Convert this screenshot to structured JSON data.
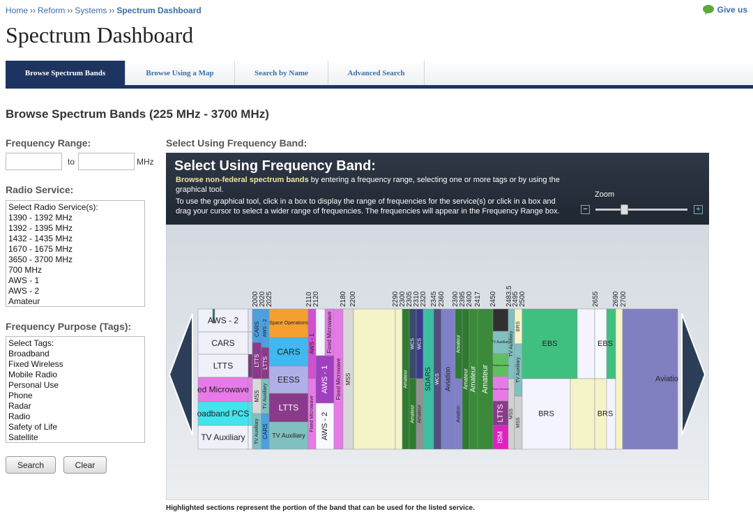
{
  "breadcrumb": {
    "items": [
      "Home",
      "Reform",
      "Systems",
      "Spectrum Dashboard"
    ],
    "separator": "››"
  },
  "feedback": "Give us",
  "title": "Spectrum Dashboard",
  "tabs": [
    "Browse Spectrum Bands",
    "Browse Using a Map",
    "Search by Name",
    "Advanced Search"
  ],
  "heading": "Browse Spectrum Bands (225 MHz - 3700 MHz)",
  "form": {
    "range_label": "Frequency Range:",
    "to": "to",
    "unit": "MHz",
    "service_label": "Radio Service:",
    "service_options": [
      "Select Radio Service(s):",
      "1390 - 1392 MHz",
      "1392 - 1395 MHz",
      "1432 - 1435 MHz",
      "1670 - 1675 MHz",
      "3650 - 3700 MHz",
      "700 MHz",
      "AWS - 1",
      "AWS - 2",
      "Amateur"
    ],
    "tags_label": "Frequency Purpose (Tags):",
    "tag_options": [
      "Select Tags:",
      "Broadband",
      "Fixed Wireless",
      "Mobile Radio",
      "Personal Use",
      "Phone",
      "Radar",
      "Radio",
      "Safety of Life",
      "Satellite"
    ],
    "search": "Search",
    "clear": "Clear"
  },
  "panel": {
    "label": "Select Using Frequency Band:",
    "title": "Select Using Frequency Band:",
    "intro_bold": "Browse non-federal spectrum bands",
    "intro_rest": " by entering a frequency range, selecting one or more tags or by using the graphical tool.",
    "instructions": "To use the graphical tool, click in a box to display the range of frequencies for the service(s) or click in a box and drag your cursor to select a wider range of frequencies.  The frequencies will appear in the Frequency Range box.",
    "zoom": "Zoom",
    "zoom_out": "−",
    "zoom_in": "+",
    "frequencies": [
      "2000",
      "2020",
      "2025",
      "2110",
      "2120",
      "2180",
      "2200",
      "2290",
      "2300",
      "2305",
      "2310",
      "2320",
      "2345",
      "2360",
      "2390",
      "2395",
      "2400",
      "2417",
      "2450",
      "2483.5",
      "2495",
      "2500",
      "2655",
      "2690",
      "2700"
    ],
    "band_labels": [
      "AWS - 2",
      "CARS",
      "LTTS",
      "ed Microwave",
      "oadband PCS",
      "TV Auxiliary",
      "CARS",
      "LTTS",
      "MSS",
      "TV Auxiliary",
      "AWS - 2",
      "LTTS",
      "TV Auxiliary",
      "CARS",
      "Space Operations",
      "CARS",
      "EESS",
      "LTTS",
      "TV Auxiliary",
      "AWS - 1",
      "Fixed Microwave",
      "Fixed Microwave",
      "AWS - 1",
      "AWS - 2",
      "Fixed Microwave",
      "MSS",
      "Amateur",
      "WCS",
      "Amateur",
      "WCS",
      "Amateur",
      "SDARS",
      "WCS",
      "Aviation",
      "Amateur",
      "Aviation",
      "Amateur",
      "Amateur",
      "Amateur",
      "TV Auxiliary",
      "Radiolocation",
      "Fixed Service",
      "LTTS",
      "ISM",
      "TV Auxiliary",
      "MSS",
      "BRS",
      "TV Auxiliary",
      "MSS",
      "EBS",
      "BRS",
      "EBS",
      "BRS",
      "Aviatio"
    ],
    "footnote": "Highlighted sections represent the portion of the band that can be used for the listed service."
  }
}
